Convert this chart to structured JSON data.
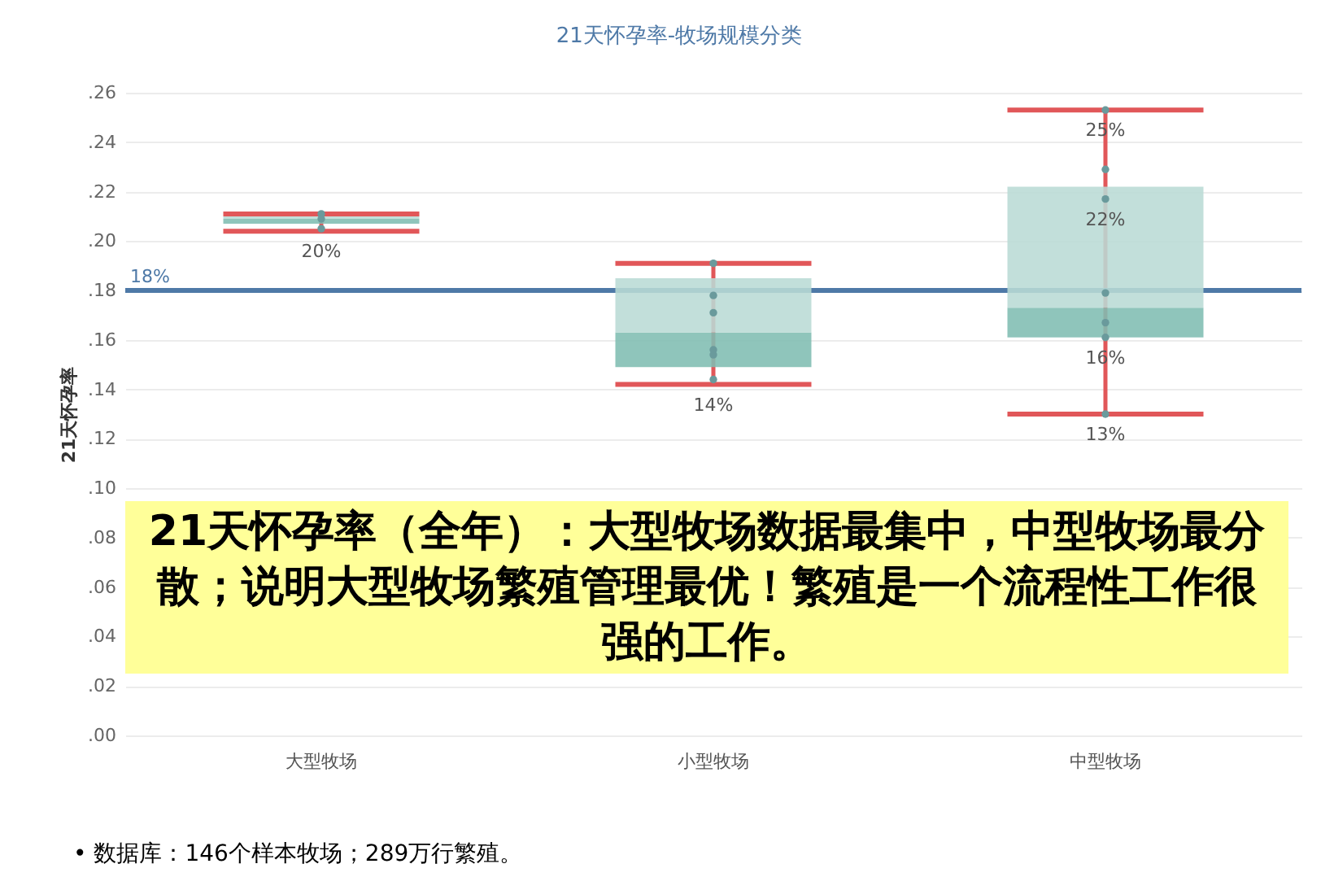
{
  "chart_data": {
    "type": "box",
    "title": "21天怀孕率-牧场规模分类",
    "ylabel": "21天怀孕率",
    "categories": [
      "大型牧场",
      "小型牧场",
      "中型牧场"
    ],
    "series": [
      {
        "type": "box",
        "color": "#7fbdb2",
        "boxes": [
          {
            "low": 0.204,
            "q1": 0.207,
            "median": 0.209,
            "q3": 0.21,
            "high": 0.211
          },
          {
            "low": 0.142,
            "q1": 0.149,
            "median": 0.163,
            "q3": 0.185,
            "high": 0.191
          },
          {
            "low": 0.13,
            "q1": 0.161,
            "median": 0.173,
            "q3": 0.222,
            "high": 0.253
          }
        ]
      },
      {
        "type": "scatter",
        "color": "#6a9a9c",
        "x": [
          "大型牧场",
          "大型牧场",
          "大型牧场",
          "小型牧场",
          "小型牧场",
          "小型牧场",
          "小型牧场",
          "小型牧场",
          "小型牧场",
          "中型牧场",
          "中型牧场",
          "中型牧场",
          "中型牧场",
          "中型牧场",
          "中型牧场",
          "中型牧场"
        ],
        "values": [
          0.211,
          0.209,
          0.205,
          0.191,
          0.178,
          0.171,
          0.156,
          0.154,
          0.144,
          0.253,
          0.229,
          0.217,
          0.179,
          0.167,
          0.161,
          0.13
        ]
      }
    ],
    "ylim": [
      0,
      0.26
    ],
    "yticks": [
      {
        "value": 0,
        "label": ".00"
      },
      {
        "value": 0.02,
        "label": ".02"
      },
      {
        "value": 0.04,
        "label": ".04"
      },
      {
        "value": 0.06,
        "label": ".06"
      },
      {
        "value": 0.08,
        "label": ".08"
      },
      {
        "value": 0.1,
        "label": ".10"
      },
      {
        "value": 0.12,
        "label": ".12"
      },
      {
        "value": 0.14,
        "label": ".14"
      },
      {
        "value": 0.16,
        "label": ".16"
      },
      {
        "value": 0.18,
        "label": ".18"
      },
      {
        "value": 0.2,
        "label": ".20"
      },
      {
        "value": 0.22,
        "label": ".22"
      },
      {
        "value": 0.24,
        "label": ".24"
      },
      {
        "value": 0.26,
        "label": ".26"
      }
    ],
    "grid": "y",
    "marker": "circle",
    "ref_lines": [
      {
        "axis": "y",
        "value": 0.18,
        "label": "18%",
        "color": "#4e79a7"
      }
    ],
    "annotations": [
      {
        "text": "20%",
        "x": "大型牧场",
        "y": 0.204
      },
      {
        "text": "14%",
        "x": "小型牧场",
        "y": 0.142
      },
      {
        "text": "25%",
        "x": "中型牧场",
        "y": 0.253
      },
      {
        "text": "22%",
        "x": "中型牧场",
        "y": 0.217
      },
      {
        "text": "16%",
        "x": "中型牧场",
        "y": 0.161
      },
      {
        "text": "13%",
        "x": "中型牧场",
        "y": 0.13
      },
      "21天怀孕率（全年）：大型牧场数据最集中，中型牧场最分散；说明大型牧场繁殖管理最优！繁殖是一个流程性工作很强的工作。",
      "• 数据库：146个样本牧场；289万行繁殖。"
    ]
  }
}
